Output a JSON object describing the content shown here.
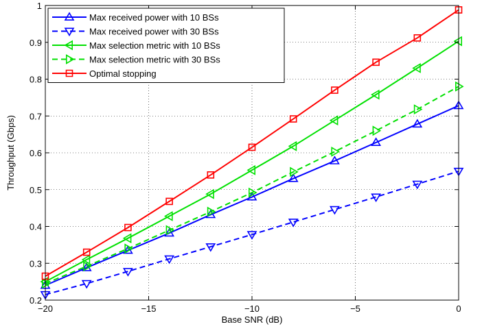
{
  "chart_data": {
    "type": "line",
    "title": "",
    "xlabel": "Base SNR (dB)",
    "ylabel": "Throughput (Gbps)",
    "xlim": [
      -20,
      0
    ],
    "ylim": [
      0.2,
      1.0
    ],
    "xticks": [
      -20,
      -15,
      -10,
      -5,
      0
    ],
    "xtick_labels": [
      "−20",
      "−15",
      "−10",
      "−5",
      "0"
    ],
    "yticks": [
      0.2,
      0.3,
      0.4,
      0.5,
      0.6,
      0.7,
      0.8,
      0.9,
      1.0
    ],
    "ytick_labels": [
      "0.2",
      "0.3",
      "0.4",
      "0.5",
      "0.6",
      "0.7",
      "0.8",
      "0.9",
      "1"
    ],
    "grid": true,
    "legend_position": "top-left",
    "x": [
      -20,
      -18,
      -16,
      -14,
      -12,
      -10,
      -8,
      -6,
      -4,
      -2,
      0
    ],
    "series": [
      {
        "name": "Max received power with 10 BSs",
        "color": "#0000ff",
        "dash": "solid",
        "marker": "triangle-up",
        "values": [
          0.24,
          0.288,
          0.335,
          0.382,
          0.432,
          0.48,
          0.53,
          0.578,
          0.628,
          0.678,
          0.728
        ]
      },
      {
        "name": "Max received power with 30 BSs",
        "color": "#0000ff",
        "dash": "dashed",
        "marker": "triangle-down",
        "values": [
          0.215,
          0.245,
          0.278,
          0.312,
          0.345,
          0.378,
          0.412,
          0.446,
          0.48,
          0.515,
          0.55
        ]
      },
      {
        "name": "Max selection metric with 10 BSs",
        "color": "#00e000",
        "dash": "solid",
        "marker": "triangle-left",
        "values": [
          0.25,
          0.31,
          0.368,
          0.428,
          0.488,
          0.553,
          0.618,
          0.688,
          0.758,
          0.83,
          0.903
        ]
      },
      {
        "name": "Max selection metric with 30 BSs",
        "color": "#00e000",
        "dash": "dashed",
        "marker": "triangle-right",
        "values": [
          0.245,
          0.292,
          0.34,
          0.39,
          0.44,
          0.492,
          0.548,
          0.603,
          0.66,
          0.718,
          0.78
        ]
      },
      {
        "name": "Optimal stopping",
        "color": "#ff0000",
        "dash": "solid",
        "marker": "square",
        "values": [
          0.265,
          0.33,
          0.397,
          0.468,
          0.54,
          0.615,
          0.692,
          0.77,
          0.846,
          0.912,
          0.988
        ]
      }
    ]
  }
}
